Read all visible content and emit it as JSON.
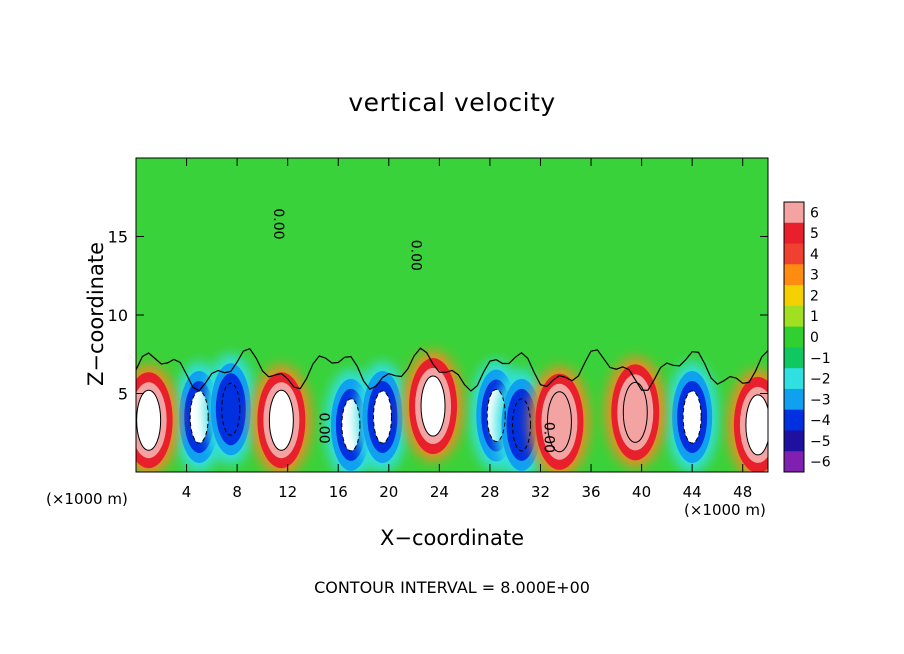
{
  "chart_data": {
    "type": "heatmap",
    "title": "vertical velocity",
    "xlabel": "X−coordinate",
    "ylabel": "Z−coordinate",
    "x_unit_label": "(×1000 m)",
    "xlim": [
      0,
      50
    ],
    "ylim": [
      0,
      20
    ],
    "x_ticks": [
      4,
      8,
      12,
      16,
      20,
      24,
      28,
      32,
      36,
      40,
      44,
      48
    ],
    "y_ticks": [
      5,
      10,
      15
    ],
    "colorbar": {
      "ticks": [
        6,
        5,
        4,
        3,
        2,
        1,
        0,
        -1,
        -2,
        -3,
        -4,
        -5,
        -6
      ],
      "colors": [
        "#f4a3a3",
        "#e8202c",
        "#f04030",
        "#ff8c10",
        "#f5d000",
        "#a0e020",
        "#30d030",
        "#10c860",
        "#30e0e0",
        "#10a0f0",
        "#0030e0",
        "#2010a0",
        "#8020b0"
      ]
    },
    "contour_labels": [
      {
        "x": 14.5,
        "z": 2.8,
        "text": "0.00"
      },
      {
        "x": 32.3,
        "z": 2.2,
        "text": "0.00"
      },
      {
        "x": 10.9,
        "z": 15.8,
        "text": "0.00"
      },
      {
        "x": 21.8,
        "z": 13.8,
        "text": "0.00"
      }
    ],
    "updraft_cores": [
      {
        "x": 1.0,
        "z": 3.3,
        "w": 6.5
      },
      {
        "x": 11.5,
        "z": 3.3,
        "w": 7.0
      },
      {
        "x": 23.5,
        "z": 4.2,
        "w": 7.0
      },
      {
        "x": 33.5,
        "z": 3.2,
        "w": 5.0
      },
      {
        "x": 39.5,
        "z": 3.8,
        "w": 5.0
      },
      {
        "x": 49.2,
        "z": 3.0,
        "w": 6.0
      }
    ],
    "downdraft_cores": [
      {
        "x": 5.0,
        "z": 3.5,
        "w": -6.5
      },
      {
        "x": 7.5,
        "z": 4.0,
        "w": -5.0
      },
      {
        "x": 17.0,
        "z": 3.0,
        "w": -6.5
      },
      {
        "x": 19.5,
        "z": 3.5,
        "w": -6.5
      },
      {
        "x": 28.5,
        "z": 3.6,
        "w": -6.5
      },
      {
        "x": 30.5,
        "z": 3.0,
        "w": -5.5
      },
      {
        "x": 44.0,
        "z": 3.5,
        "w": -6.5
      }
    ]
  },
  "footer": "CONTOUR INTERVAL = 8.000E+00"
}
